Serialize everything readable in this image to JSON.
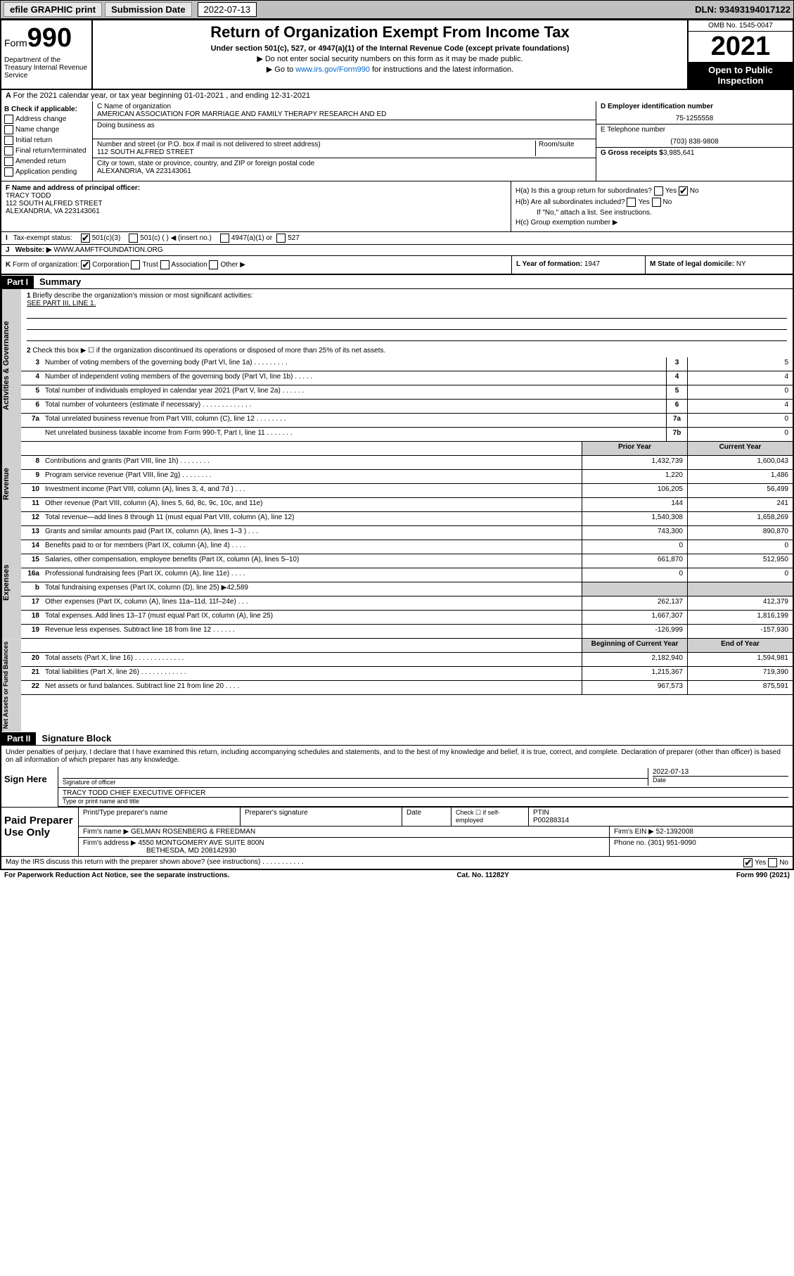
{
  "topbar": {
    "efile": "efile GRAPHIC print",
    "subLabel": "Submission Date",
    "subDate": "2022-07-13",
    "dln": "DLN: 93493194017122"
  },
  "header": {
    "formWord": "Form",
    "formNum": "990",
    "dept": "Department of the Treasury Internal Revenue Service",
    "title": "Return of Organization Exempt From Income Tax",
    "sub": "Under section 501(c), 527, or 4947(a)(1) of the Internal Revenue Code (except private foundations)",
    "note1": "▶ Do not enter social security numbers on this form as it may be made public.",
    "note2a": "▶ Go to ",
    "note2link": "www.irs.gov/Form990",
    "note2b": " for instructions and the latest information.",
    "omb": "OMB No. 1545-0047",
    "year": "2021",
    "open": "Open to Public Inspection"
  },
  "lineA": "For the 2021 calendar year, or tax year beginning 01-01-2021   , and ending 12-31-2021",
  "colB": {
    "hdr": "B Check if applicable:",
    "items": [
      "Address change",
      "Name change",
      "Initial return",
      "Final return/terminated",
      "Amended return",
      "Application pending"
    ]
  },
  "colC": {
    "nameLbl": "C Name of organization",
    "name": "AMERICAN ASSOCIATION FOR MARRIAGE AND FAMILY THERAPY RESEARCH AND ED",
    "dbaLbl": "Doing business as",
    "addrLbl": "Number and street (or P.O. box if mail is not delivered to street address)",
    "roomLbl": "Room/suite",
    "addr": "112 SOUTH ALFRED STREET",
    "cityLbl": "City or town, state or province, country, and ZIP or foreign postal code",
    "city": "ALEXANDRIA, VA  223143061"
  },
  "colD": {
    "einLbl": "D Employer identification number",
    "ein": "75-1255558",
    "telLbl": "E Telephone number",
    "tel": "(703) 838-9808",
    "grossLbl": "G Gross receipts $",
    "gross": "3,985,641"
  },
  "colF": {
    "lbl": "F  Name and address of principal officer:",
    "name": "TRACY TODD",
    "addr1": "112 SOUTH ALFRED STREET",
    "addr2": "ALEXANDRIA, VA  223143061"
  },
  "colH": {
    "a": "H(a)  Is this a group return for subordinates?",
    "b": "H(b)  Are all subordinates included?",
    "bNote": "If \"No,\" attach a list. See instructions.",
    "c": "H(c)  Group exemption number ▶",
    "yes": "Yes",
    "no": "No"
  },
  "lineI": {
    "lbl": "I",
    "txt": "Tax-exempt status:",
    "o1": "501(c)(3)",
    "o2": "501(c) (  ) ◀ (insert no.)",
    "o3": "4947(a)(1) or",
    "o4": "527"
  },
  "lineJ": {
    "lbl": "J",
    "txt": "Website: ▶",
    "val": "WWW.AAMFTFOUNDATION.ORG"
  },
  "lineK": {
    "lbl": "K",
    "txt": "Form of organization:",
    "o1": "Corporation",
    "o2": "Trust",
    "o3": "Association",
    "o4": "Other ▶"
  },
  "lineL": {
    "txt": "L Year of formation:",
    "val": "1947"
  },
  "lineM": {
    "txt": "M State of legal domicile:",
    "val": "NY"
  },
  "part1": {
    "hdr": "Part I",
    "title": "Summary"
  },
  "mission": {
    "q1": "Briefly describe the organization's mission or most significant activities:",
    "a1": "SEE PART III, LINE 1.",
    "q2": "Check this box ▶ ☐  if the organization discontinued its operations or disposed of more than 25% of its net assets."
  },
  "sideLabels": {
    "gov": "Activities & Governance",
    "rev": "Revenue",
    "exp": "Expenses",
    "net": "Net Assets or Fund Balances"
  },
  "govLines": [
    {
      "n": "3",
      "t": "Number of voting members of the governing body (Part VI, line 1a)  .  .  .  .  .  .  .  .  .",
      "b": "3",
      "v": "5"
    },
    {
      "n": "4",
      "t": "Number of independent voting members of the governing body (Part VI, line 1b)  .  .  .  .  .",
      "b": "4",
      "v": "4"
    },
    {
      "n": "5",
      "t": "Total number of individuals employed in calendar year 2021 (Part V, line 2a)  .  .  .  .  .  .",
      "b": "5",
      "v": "0"
    },
    {
      "n": "6",
      "t": "Total number of volunteers (estimate if necessary)  .  .  .  .  .  .  .  .  .  .  .  .  .",
      "b": "6",
      "v": "4"
    },
    {
      "n": "7a",
      "t": "Total unrelated business revenue from Part VIII, column (C), line 12  .  .  .  .  .  .  .  .",
      "b": "7a",
      "v": "0"
    },
    {
      "n": "",
      "t": "Net unrelated business taxable income from Form 990-T, Part I, line 11  .  .  .  .  .  .  .",
      "b": "7b",
      "v": "0"
    }
  ],
  "finHdr": {
    "py": "Prior Year",
    "cy": "Current Year",
    "bcy": "Beginning of Current Year",
    "eoy": "End of Year"
  },
  "revLines": [
    {
      "n": "8",
      "t": "Contributions and grants (Part VIII, line 1h)  .  .  .  .  .  .  .  .",
      "p": "1,432,739",
      "c": "1,600,043"
    },
    {
      "n": "9",
      "t": "Program service revenue (Part VIII, line 2g)  .  .  .  .  .  .  .  .",
      "p": "1,220",
      "c": "1,486"
    },
    {
      "n": "10",
      "t": "Investment income (Part VIII, column (A), lines 3, 4, and 7d )  .  .  .",
      "p": "106,205",
      "c": "56,499"
    },
    {
      "n": "11",
      "t": "Other revenue (Part VIII, column (A), lines 5, 6d, 8c, 9c, 10c, and 11e)",
      "p": "144",
      "c": "241"
    },
    {
      "n": "12",
      "t": "Total revenue—add lines 8 through 11 (must equal Part VIII, column (A), line 12)",
      "p": "1,540,308",
      "c": "1,658,269"
    }
  ],
  "expLines": [
    {
      "n": "13",
      "t": "Grants and similar amounts paid (Part IX, column (A), lines 1–3 )  .  .  .",
      "p": "743,300",
      "c": "890,870"
    },
    {
      "n": "14",
      "t": "Benefits paid to or for members (Part IX, column (A), line 4)  .  .  .  .",
      "p": "0",
      "c": "0"
    },
    {
      "n": "15",
      "t": "Salaries, other compensation, employee benefits (Part IX, column (A), lines 5–10)",
      "p": "661,870",
      "c": "512,950"
    },
    {
      "n": "16a",
      "t": "Professional fundraising fees (Part IX, column (A), line 11e)  .  .  .  .",
      "p": "0",
      "c": "0"
    }
  ],
  "line16b": {
    "n": "b",
    "t": "Total fundraising expenses (Part IX, column (D), line 25) ▶42,589"
  },
  "expLines2": [
    {
      "n": "17",
      "t": "Other expenses (Part IX, column (A), lines 11a–11d, 11f–24e)  .  .  .",
      "p": "262,137",
      "c": "412,379"
    },
    {
      "n": "18",
      "t": "Total expenses. Add lines 13–17 (must equal Part IX, column (A), line 25)",
      "p": "1,667,307",
      "c": "1,816,199"
    },
    {
      "n": "19",
      "t": "Revenue less expenses. Subtract line 18 from line 12  .  .  .  .  .  .",
      "p": "-126,999",
      "c": "-157,930"
    }
  ],
  "netLines": [
    {
      "n": "20",
      "t": "Total assets (Part X, line 16)  .  .  .  .  .  .  .  .  .  .  .  .  .",
      "p": "2,182,940",
      "c": "1,594,981"
    },
    {
      "n": "21",
      "t": "Total liabilities (Part X, line 26)  .  .  .  .  .  .  .  .  .  .  .  .",
      "p": "1,215,367",
      "c": "719,390"
    },
    {
      "n": "22",
      "t": "Net assets or fund balances. Subtract line 21 from line 20  .  .  .  .",
      "p": "967,573",
      "c": "875,591"
    }
  ],
  "part2": {
    "hdr": "Part II",
    "title": "Signature Block"
  },
  "sig": {
    "decl": "Under penalties of perjury, I declare that I have examined this return, including accompanying schedules and statements, and to the best of my knowledge and belief, it is true, correct, and complete. Declaration of preparer (other than officer) is based on all information of which preparer has any knowledge.",
    "here": "Sign Here",
    "sigLbl": "Signature of officer",
    "dateLbl": "Date",
    "date": "2022-07-13",
    "name": "TRACY TODD  CHIEF EXECUTIVE OFFICER",
    "nameLbl": "Type or print name and title"
  },
  "prep": {
    "lbl": "Paid Preparer Use Only",
    "c1": "Print/Type preparer's name",
    "c2": "Preparer's signature",
    "c3": "Date",
    "c4a": "Check ☐ if self-employed",
    "c4b": "PTIN",
    "ptin": "P00288314",
    "firmLbl": "Firm's name    ▶",
    "firm": "GELMAN ROSENBERG & FREEDMAN",
    "einLbl": "Firm's EIN ▶",
    "ein": "52-1392008",
    "addrLbl": "Firm's address ▶",
    "addr1": "4550 MONTGOMERY AVE SUITE 800N",
    "addr2": "BETHESDA, MD  208142930",
    "phLbl": "Phone no.",
    "ph": "(301) 951-9090"
  },
  "footer": {
    "q": "May the IRS discuss this return with the preparer shown above? (see instructions)  .  .  .  .  .  .  .  .  .  .  .",
    "yes": "Yes",
    "no": "No",
    "paperwork": "For Paperwork Reduction Act Notice, see the separate instructions.",
    "cat": "Cat. No. 11282Y",
    "form": "Form 990 (2021)"
  }
}
